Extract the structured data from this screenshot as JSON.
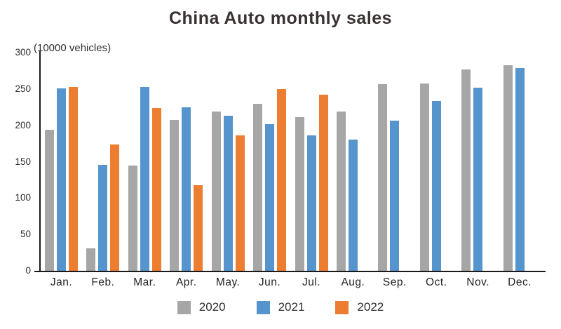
{
  "title": "China Auto monthly sales",
  "unit_label": "(10000 vehicles)",
  "colors": {
    "series_2020": "#a6a6a6",
    "series_2021": "#5694ce",
    "series_2022": "#ed7d31",
    "axis": "#1a1a1a",
    "text": "#2e2e2e",
    "title_text": "#3a3132"
  },
  "chart_data": {
    "type": "bar",
    "title": "China Auto monthly sales",
    "xlabel": "",
    "ylabel": "(10000 vehicles)",
    "ylim": [
      0,
      300
    ],
    "yticks": [
      0,
      50,
      100,
      150,
      200,
      250,
      300
    ],
    "grid": false,
    "legend_position": "bottom",
    "categories": [
      "Jan.",
      "Feb.",
      "Mar.",
      "Apr.",
      "May.",
      "Jun.",
      "Jul.",
      "Aug.",
      "Sep.",
      "Oct.",
      "Nov.",
      "Dec."
    ],
    "series": [
      {
        "name": "2020",
        "color": "#a6a6a6",
        "values": [
          194,
          31,
          145,
          207,
          219,
          230,
          211,
          219,
          257,
          258,
          277,
          283
        ]
      },
      {
        "name": "2021",
        "color": "#5694ce",
        "values": [
          251,
          146,
          253,
          225,
          213,
          202,
          186,
          180,
          206,
          233,
          252,
          279
        ]
      },
      {
        "name": "2022",
        "color": "#ed7d31",
        "values": [
          253,
          174,
          224,
          118,
          186,
          250,
          242,
          null,
          null,
          null,
          null,
          null
        ]
      }
    ]
  }
}
